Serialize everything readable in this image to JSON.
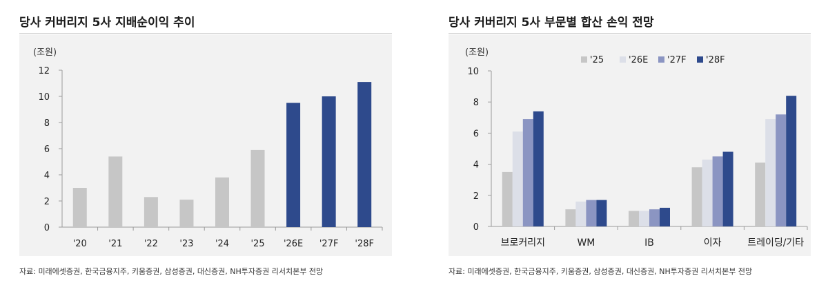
{
  "left": {
    "title": "당사 커버리지 5사 지배순이익 추이",
    "source": "자료: 미래에셋증권, 한국금융지주, 키움증권, 삼성증권, 대신증권, NH투자증권 리서치본부 전망",
    "colors": {
      "actual": "#c6c6c6",
      "forecast": "#2e4a8c"
    }
  },
  "right": {
    "title": "당사 커버리지 5사 부문별 합산 손익 전망",
    "source": "자료: 미래에셋증권, 한국금융지주, 키움증권, 삼성증권, 대신증권, NH투자증권 리서치본부 전망"
  },
  "chart_data": [
    {
      "type": "bar",
      "unit_label": "(조원)",
      "categories": [
        "'20",
        "'21",
        "'22",
        "'23",
        "'24",
        "'25",
        "'26E",
        "'27F",
        "'28F"
      ],
      "values": [
        3.0,
        5.4,
        2.3,
        2.1,
        3.8,
        5.9,
        9.5,
        10.0,
        11.1
      ],
      "forecast_from_index": 6,
      "ylim": [
        0,
        12
      ],
      "yticks": [
        0,
        2,
        4,
        6,
        8,
        10,
        12
      ],
      "grid": false
    },
    {
      "type": "bar",
      "unit_label": "(조원)",
      "categories": [
        "브로커리지",
        "WM",
        "IB",
        "이자",
        "트레이딩/기타"
      ],
      "series": [
        {
          "name": "'25",
          "color": "#c6c6c6",
          "values": [
            3.5,
            1.1,
            1.0,
            3.8,
            4.1
          ]
        },
        {
          "name": "'26E",
          "color": "#dcdfe8",
          "values": [
            6.1,
            1.6,
            1.0,
            4.3,
            6.9
          ]
        },
        {
          "name": "'27F",
          "color": "#8b95c2",
          "values": [
            6.9,
            1.7,
            1.1,
            4.5,
            7.2
          ]
        },
        {
          "name": "'28F",
          "color": "#2e4a8c",
          "values": [
            7.4,
            1.7,
            1.2,
            4.8,
            8.4
          ]
        }
      ],
      "ylim": [
        0,
        10
      ],
      "yticks": [
        0,
        2,
        4,
        6,
        8,
        10
      ],
      "legend_position": "top",
      "grid": false
    }
  ]
}
